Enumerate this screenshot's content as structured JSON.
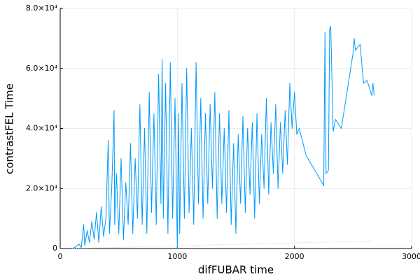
{
  "chart_data": {
    "type": "line",
    "x_label": "difFUBAR time",
    "y_label": "contrastFEL Time",
    "xlim": [
      0,
      3000
    ],
    "xticks": [
      0,
      1000,
      2000,
      3000
    ],
    "ylim": [
      0,
      80000
    ],
    "yticks": [
      0,
      {
        "value": 20000,
        "label": "2.0×10⁴"
      },
      {
        "value": 40000,
        "label": "4.0×10⁴"
      },
      {
        "value": 60000,
        "label": "6.0×10⁴"
      },
      {
        "value": 80000,
        "label": "8.0×10⁴"
      }
    ],
    "grid": true,
    "series": [
      {
        "color": "#009af9",
        "style": "solid",
        "x": [
          100,
          130,
          160,
          180,
          200,
          210,
          230,
          250,
          270,
          290,
          310,
          330,
          350,
          370,
          390,
          410,
          420,
          440,
          460,
          465,
          480,
          500,
          520,
          540,
          560,
          580,
          600,
          620,
          640,
          660,
          680,
          700,
          720,
          740,
          760,
          780,
          800,
          820,
          840,
          860,
          870,
          880,
          900,
          920,
          940,
          960,
          980,
          1000,
          1010,
          1020,
          1040,
          1060,
          1080,
          1100,
          1120,
          1140,
          1160,
          1180,
          1200,
          1220,
          1240,
          1260,
          1280,
          1300,
          1320,
          1340,
          1360,
          1380,
          1400,
          1420,
          1440,
          1460,
          1480,
          1500,
          1520,
          1540,
          1560,
          1580,
          1600,
          1620,
          1640,
          1660,
          1680,
          1700,
          1720,
          1740,
          1760,
          1780,
          1800,
          1820,
          1840,
          1860,
          1880,
          1900,
          1920,
          1940,
          1960,
          1980,
          2000,
          2020,
          2040,
          2100,
          2250,
          2260,
          2270,
          2290,
          2300,
          2310,
          2330,
          2350,
          2400,
          2500,
          2510,
          2520,
          2560,
          2590,
          2620,
          2660,
          2670,
          2680
        ],
        "values": [
          0,
          500,
          1500,
          300,
          8000,
          1000,
          6000,
          2000,
          9000,
          3000,
          12000,
          2000,
          14000,
          4000,
          10000,
          36000,
          5000,
          20000,
          46000,
          8000,
          25000,
          5000,
          30000,
          3000,
          22000,
          8000,
          35000,
          5000,
          30000,
          10000,
          48000,
          8000,
          40000,
          5000,
          52000,
          12000,
          45000,
          8000,
          58000,
          15000,
          63000,
          10000,
          55000,
          5000,
          62000,
          10000,
          50000,
          0,
          45000,
          5000,
          55000,
          10000,
          60000,
          12000,
          40000,
          8000,
          62000,
          15000,
          50000,
          10000,
          45000,
          15000,
          48000,
          20000,
          52000,
          10000,
          45000,
          15000,
          40000,
          12000,
          46000,
          8000,
          35000,
          5000,
          38000,
          15000,
          44000,
          12000,
          40000,
          18000,
          42000,
          10000,
          45000,
          15000,
          38000,
          20000,
          50000,
          18000,
          42000,
          25000,
          48000,
          20000,
          42000,
          25000,
          46000,
          28000,
          55000,
          40000,
          52000,
          38000,
          40000,
          31000,
          21000,
          72000,
          25000,
          26000,
          73000,
          74000,
          39000,
          43000,
          40000,
          65000,
          70000,
          66000,
          68000,
          55000,
          56000,
          51000,
          55000,
          51000
        ]
      },
      {
        "color": "#c8c8c8",
        "style": "dotted",
        "x": [
          100,
          2660
        ],
        "values": [
          0,
          2500
        ]
      }
    ]
  }
}
